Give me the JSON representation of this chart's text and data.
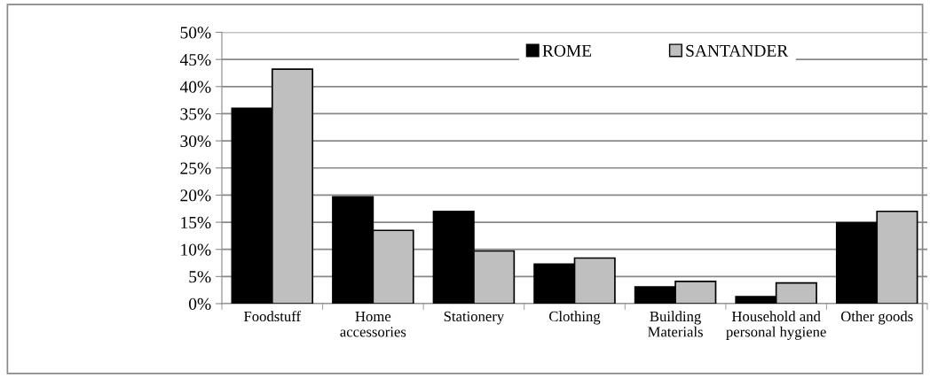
{
  "chart_data": {
    "type": "bar",
    "categories": [
      "Foodstuff",
      "Home\naccessories",
      "Stationery",
      "Clothing",
      "Building\nMaterials",
      "Household and\npersonal hygiene",
      "Other goods"
    ],
    "series": [
      {
        "name": "ROME",
        "color": "#000000",
        "values": [
          36.0,
          19.7,
          17.0,
          7.3,
          3.1,
          1.3,
          14.9
        ]
      },
      {
        "name": "SANTANDER",
        "color": "#bfbfbf",
        "values": [
          43.2,
          13.5,
          9.7,
          8.4,
          4.1,
          3.8,
          17.0
        ]
      }
    ],
    "ylim": [
      0,
      50
    ],
    "yticks": [
      {
        "value": 0,
        "label": "0%"
      },
      {
        "value": 5,
        "label": "5%"
      },
      {
        "value": 10,
        "label": "10%"
      },
      {
        "value": 15,
        "label": "15%"
      },
      {
        "value": 20,
        "label": "20%"
      },
      {
        "value": 25,
        "label": "25%"
      },
      {
        "value": 30,
        "label": "30%"
      },
      {
        "value": 35,
        "label": "35%"
      },
      {
        "value": 40,
        "label": "40%"
      },
      {
        "value": 45,
        "label": "45%"
      },
      {
        "value": 50,
        "label": "50%"
      }
    ],
    "grid": "y",
    "legend": "top right"
  }
}
